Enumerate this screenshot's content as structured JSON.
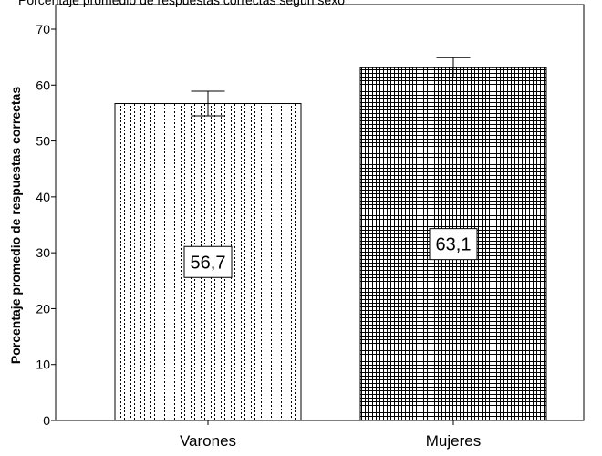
{
  "chart_data": {
    "type": "bar",
    "caption": "Porcentaje promedio de respuestas correctas según sexo",
    "categories": [
      "Varones",
      "Mujeres"
    ],
    "values": [
      56.7,
      63.1
    ],
    "value_labels": [
      "56,7",
      "63,1"
    ],
    "error_bars": [
      {
        "low": 54.5,
        "high": 58.9
      },
      {
        "low": 61.3,
        "high": 64.9
      }
    ],
    "ylabel": "Porcentaje promedio de respuestas correctas",
    "xlabel": "",
    "ylim": [
      0,
      70
    ],
    "yticks": [
      0,
      10,
      20,
      30,
      40,
      50,
      60,
      70
    ],
    "patterns": [
      "vertical-dotted-stripes",
      "fine-grid-crosshatch"
    ],
    "grid": false,
    "legend": "none"
  }
}
